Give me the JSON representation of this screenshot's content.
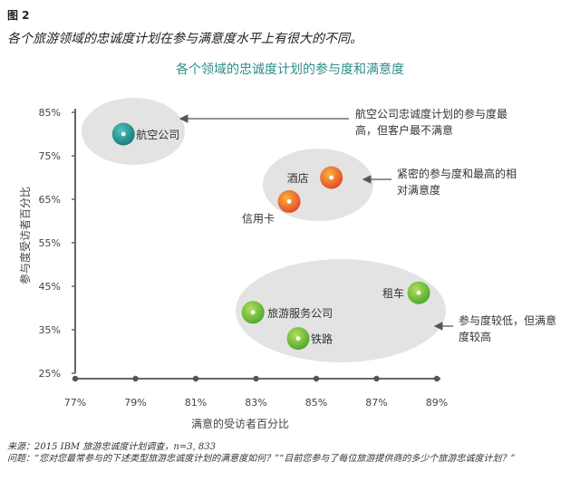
{
  "figure_label": "图 2",
  "figure_caption": "各个旅游领域的忠诚度计划在参与满意度水平上有很大的不同。",
  "chart_data": {
    "type": "scatter",
    "title": "各个领域的忠诚度计划的参与度和满意度",
    "xlabel": "满意的受访者百分比",
    "ylabel": "参与度受访者百分比",
    "xlim": [
      77,
      89
    ],
    "ylim": [
      25,
      85
    ],
    "xticks": [
      "77%",
      "79%",
      "81%",
      "83%",
      "85%",
      "87%",
      "89%"
    ],
    "yticks": [
      "85%",
      "75%",
      "65%",
      "55%",
      "45%",
      "35%",
      "25%"
    ],
    "points": [
      {
        "label": "航空公司",
        "x": 78.6,
        "y": 80,
        "color": "#1e8f8a",
        "group": "teal"
      },
      {
        "label": "酒店",
        "x": 85.5,
        "y": 70,
        "color": "#e8692e",
        "group": "orange"
      },
      {
        "label": "信用卡",
        "x": 84.1,
        "y": 64.5,
        "color": "#e8692e",
        "group": "orange"
      },
      {
        "label": "租车",
        "x": 88.4,
        "y": 43.5,
        "color": "#6cbf3a",
        "group": "green"
      },
      {
        "label": "旅游服务公司",
        "x": 82.9,
        "y": 39,
        "color": "#6cbf3a",
        "group": "green"
      },
      {
        "label": "铁路",
        "x": 84.4,
        "y": 33,
        "color": "#6cbf3a",
        "group": "green"
      }
    ],
    "annotations": [
      {
        "text": [
          "航空公司忠诚度计划的参与度最",
          "高，但客户最不满意"
        ]
      },
      {
        "text": [
          "紧密的参与度和最高的相",
          "对满意度"
        ]
      },
      {
        "text": [
          "参与度较低，但满意",
          "度较高"
        ]
      }
    ]
  },
  "footer": {
    "source": "来源：2015 IBM 旅游忠诚度计划调查，n=3, 833",
    "question": "问题：“您对您最常参与的下述类型旅游忠诚度计划的满意度如何？”“目前您参与了每位旅游提供商的多少个旅游忠诚度计划？”"
  }
}
